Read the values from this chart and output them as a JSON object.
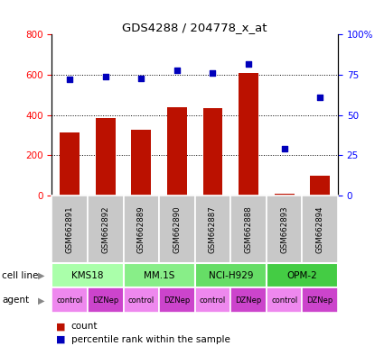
{
  "title": "GDS4288 / 204778_x_at",
  "samples": [
    "GSM662891",
    "GSM662892",
    "GSM662889",
    "GSM662890",
    "GSM662887",
    "GSM662888",
    "GSM662893",
    "GSM662894"
  ],
  "counts": [
    315,
    385,
    325,
    440,
    435,
    610,
    8,
    100
  ],
  "percentile_ranks": [
    72,
    74,
    73,
    78,
    76,
    82,
    29,
    61
  ],
  "cell_lines": [
    {
      "label": "KMS18",
      "span": [
        0,
        2
      ],
      "color": "#AAFFAA"
    },
    {
      "label": "MM.1S",
      "span": [
        2,
        4
      ],
      "color": "#88EE88"
    },
    {
      "label": "NCI-H929",
      "span": [
        4,
        6
      ],
      "color": "#66DD66"
    },
    {
      "label": "OPM-2",
      "span": [
        6,
        8
      ],
      "color": "#44CC44"
    }
  ],
  "agents": [
    "control",
    "DZNep",
    "control",
    "DZNep",
    "control",
    "DZNep",
    "control",
    "DZNep"
  ],
  "agent_light": "#EE88EE",
  "agent_dark": "#CC44CC",
  "bar_color": "#BB1100",
  "dot_color": "#0000BB",
  "ylim_left": [
    0,
    800
  ],
  "ylim_right": [
    0,
    100
  ],
  "yticks_left": [
    0,
    200,
    400,
    600,
    800
  ],
  "yticks_right": [
    0,
    25,
    50,
    75,
    100
  ],
  "ytick_labels_right": [
    "0",
    "25",
    "50",
    "75",
    "100%"
  ],
  "grid_lines": [
    200,
    400,
    600
  ],
  "sample_bg_color": "#C8C8C8"
}
